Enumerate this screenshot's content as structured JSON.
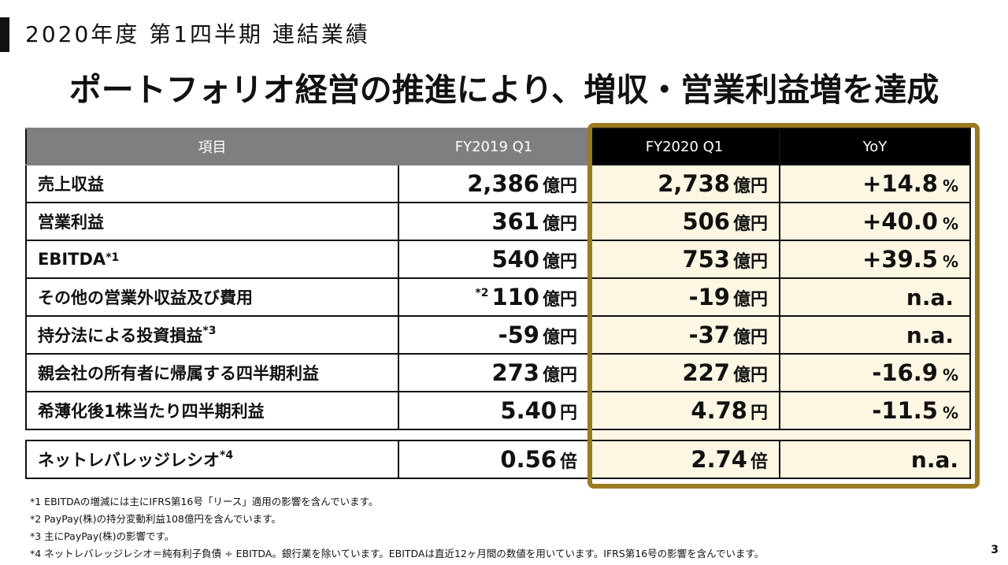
{
  "section_title": "2020年度 第1四半期 連結業績",
  "headline": "ポートフォリオ経営の推進により、増収・営業利益増を達成",
  "table": {
    "headers": [
      "項目",
      "FY2019 Q1",
      "FY2020 Q1",
      "YoY"
    ],
    "rows": [
      {
        "label": "売上収益",
        "mark": "",
        "fy19_pre": "",
        "fy19": "2,386",
        "fy19_unit": "億円",
        "fy20": "2,738",
        "fy20_unit": "億円",
        "yoy": "+14.8",
        "yoy_unit": "%"
      },
      {
        "label": "営業利益",
        "mark": "",
        "fy19_pre": "",
        "fy19": "361",
        "fy19_unit": "億円",
        "fy20": "506",
        "fy20_unit": "億円",
        "yoy": "+40.0",
        "yoy_unit": "%"
      },
      {
        "label": "EBITDA",
        "mark": "*1",
        "fy19_pre": "",
        "fy19": "540",
        "fy19_unit": "億円",
        "fy20": "753",
        "fy20_unit": "億円",
        "yoy": "+39.5",
        "yoy_unit": "%"
      },
      {
        "label": "その他の営業外収益及び費用",
        "mark": "",
        "fy19_pre": "*2",
        "fy19": "110",
        "fy19_unit": "億円",
        "fy20": "-19",
        "fy20_unit": "億円",
        "yoy": "n.a.",
        "yoy_unit": ""
      },
      {
        "label": "持分法による投資損益",
        "mark": "*3",
        "fy19_pre": "",
        "fy19": "-59",
        "fy19_unit": "億円",
        "fy20": "-37",
        "fy20_unit": "億円",
        "yoy": "n.a.",
        "yoy_unit": ""
      },
      {
        "label": "親会社の所有者に帰属する四半期利益",
        "mark": "",
        "fy19_pre": "",
        "fy19": "273",
        "fy19_unit": "億円",
        "fy20": "227",
        "fy20_unit": "億円",
        "yoy": "-16.9",
        "yoy_unit": "%"
      },
      {
        "label": "希薄化後1株当たり四半期利益",
        "mark": "",
        "fy19_pre": "",
        "fy19": "5.40",
        "fy19_unit": "円",
        "fy20": "4.78",
        "fy20_unit": "円",
        "yoy": "-11.5",
        "yoy_unit": "%"
      }
    ],
    "leverage_row": {
      "label": "ネットレバレッジレシオ",
      "mark": "*4",
      "fy19": "0.56",
      "fy19_unit": "倍",
      "fy20": "2.74",
      "fy20_unit": "倍",
      "yoy": "n.a."
    }
  },
  "footnotes": [
    "*1 EBITDAの増減には主にIFRS第16号「リース」適用の影響を含んでいます。",
    "*2 PayPay(株)の持分変動利益108億円を含んでいます。",
    "*3 主にPayPay(株)の影響です。",
    "*4 ネットレバレッジレシオ＝純有利子負債 ÷ EBITDA。銀行業を除いています。EBITDAは直近12ヶ月間の数値を用いています。IFRS第16号の影響を含んでいます。"
  ],
  "page_number": "3",
  "colors": {
    "highlight": "#fdf6e3",
    "frame": "#9b7a22",
    "header_gray": "#7f7f7f",
    "header_black": "#000000"
  }
}
